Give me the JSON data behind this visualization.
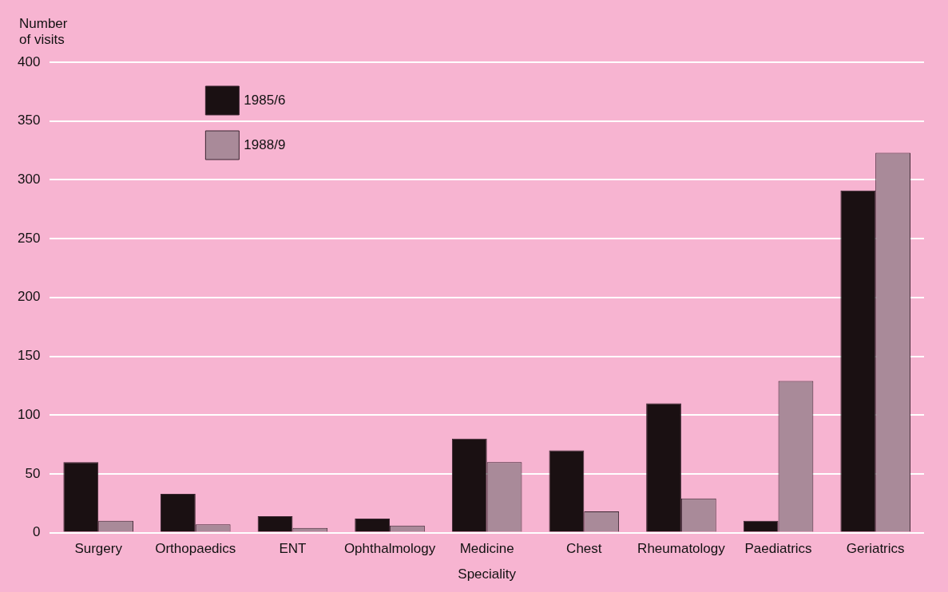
{
  "chart_data": {
    "type": "bar",
    "xlabel": "Speciality",
    "ylabel": "Number\nof visits",
    "categories": [
      "Surgery",
      "Orthopaedics",
      "ENT",
      "Ophthalmology",
      "Medicine",
      "Chest",
      "Rheumatology",
      "Paediatrics",
      "Geriatrics"
    ],
    "series": [
      {
        "name": "1985/6",
        "color": "#1a1012",
        "values": [
          60,
          33,
          14,
          12,
          80,
          70,
          110,
          10,
          291
        ]
      },
      {
        "name": "1988/9",
        "color": "#a98a99",
        "values": [
          10,
          7,
          4,
          6,
          60,
          18,
          29,
          129,
          323
        ]
      }
    ],
    "ylim": [
      0,
      400
    ],
    "yticks": [
      0,
      50,
      100,
      150,
      200,
      250,
      300,
      350,
      400
    ],
    "grid": "y",
    "legend": "top left"
  }
}
